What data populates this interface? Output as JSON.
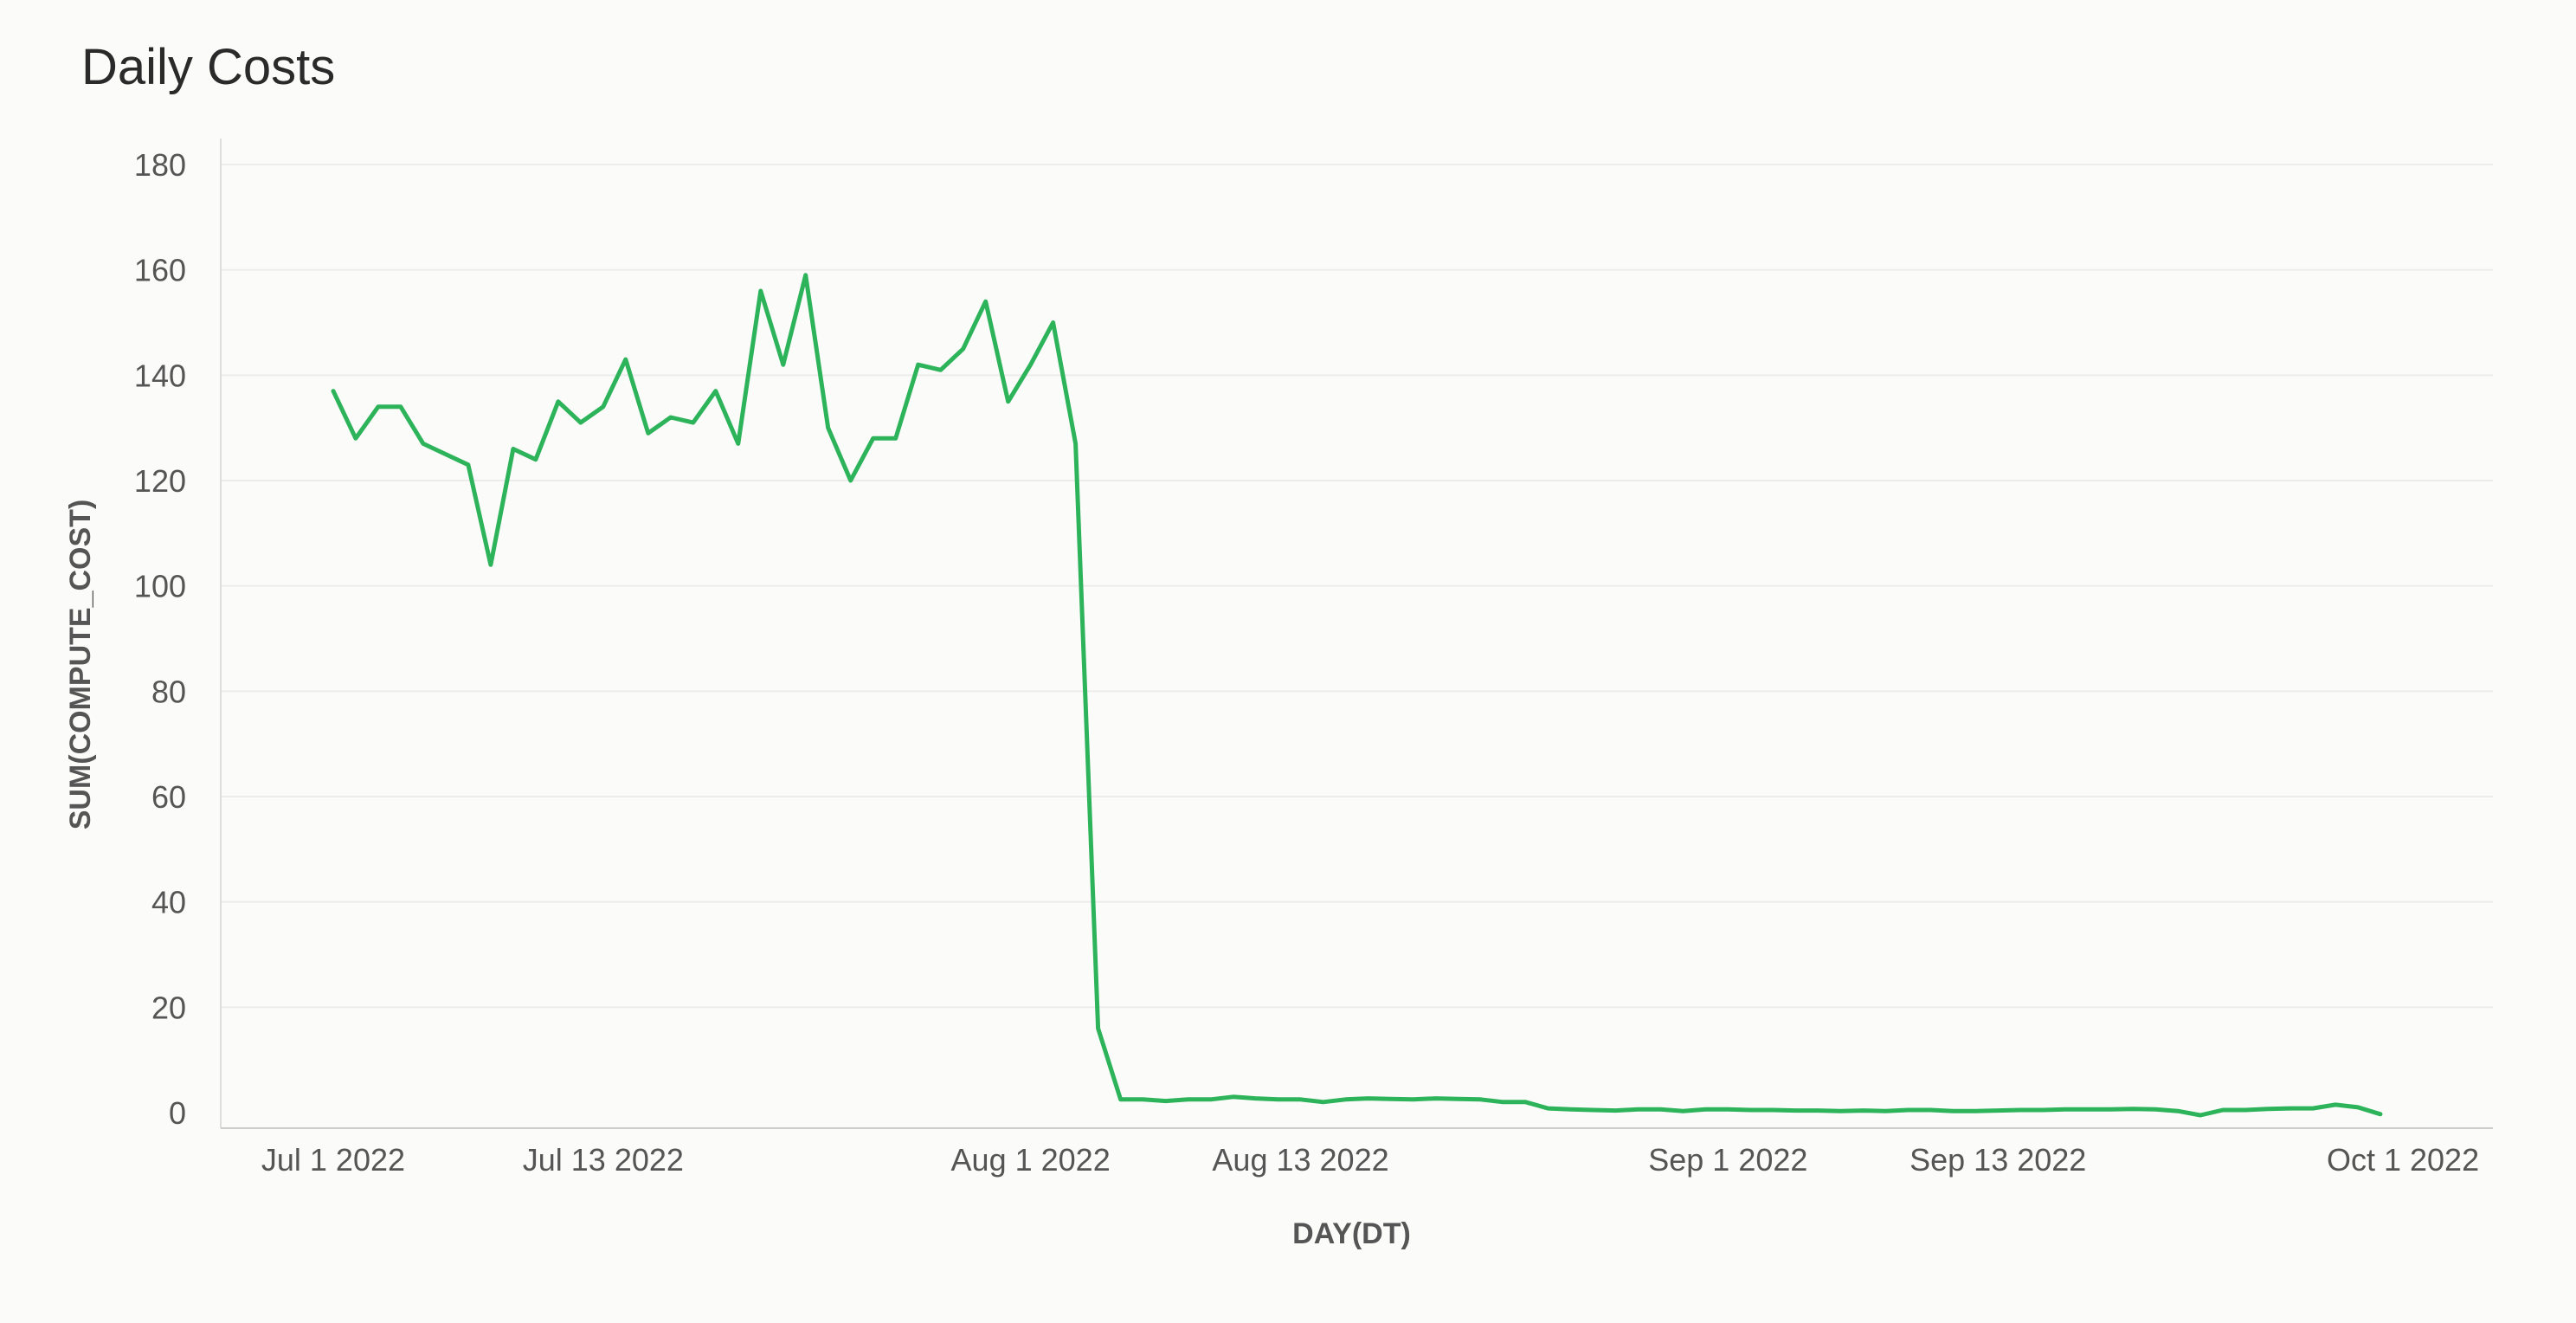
{
  "chart_data": {
    "type": "line",
    "title": "Daily Costs",
    "xlabel": "DAY(DT)",
    "ylabel": "SUM(COMPUTE_COST)",
    "ylim": [
      0,
      180
    ],
    "xlim": [
      "2022-06-26",
      "2022-10-05"
    ],
    "yticks": [
      0,
      20,
      40,
      60,
      80,
      100,
      120,
      140,
      160,
      180
    ],
    "xticks": [
      {
        "date": "2022-07-01",
        "label": "Jul 1 2022"
      },
      {
        "date": "2022-07-13",
        "label": "Jul 13 2022"
      },
      {
        "date": "2022-08-01",
        "label": "Aug 1 2022"
      },
      {
        "date": "2022-08-13",
        "label": "Aug 13 2022"
      },
      {
        "date": "2022-09-01",
        "label": "Sep 1 2022"
      },
      {
        "date": "2022-09-13",
        "label": "Sep 13 2022"
      },
      {
        "date": "2022-10-01",
        "label": "Oct 1 2022"
      }
    ],
    "grid": true,
    "color": "#2db35a",
    "series": [
      {
        "x": [
          "2022-07-01",
          "2022-07-02",
          "2022-07-03",
          "2022-07-04",
          "2022-07-05",
          "2022-07-06",
          "2022-07-07",
          "2022-07-08",
          "2022-07-09",
          "2022-07-10",
          "2022-07-11",
          "2022-07-12",
          "2022-07-13",
          "2022-07-14",
          "2022-07-15",
          "2022-07-16",
          "2022-07-17",
          "2022-07-18",
          "2022-07-19",
          "2022-07-20",
          "2022-07-21",
          "2022-07-22",
          "2022-07-23",
          "2022-07-24",
          "2022-07-25",
          "2022-07-26",
          "2022-07-27",
          "2022-07-28",
          "2022-07-29",
          "2022-07-30",
          "2022-07-31",
          "2022-08-01",
          "2022-08-02",
          "2022-08-03",
          "2022-08-04",
          "2022-08-05",
          "2022-08-06",
          "2022-08-07",
          "2022-08-08",
          "2022-08-09",
          "2022-08-10",
          "2022-08-11",
          "2022-08-12",
          "2022-08-13",
          "2022-08-14",
          "2022-08-15",
          "2022-08-16",
          "2022-08-17",
          "2022-08-18",
          "2022-08-19",
          "2022-08-20",
          "2022-08-21",
          "2022-08-22",
          "2022-08-23",
          "2022-08-24",
          "2022-08-25",
          "2022-08-26",
          "2022-08-27",
          "2022-08-28",
          "2022-08-29",
          "2022-08-30",
          "2022-08-31",
          "2022-09-01",
          "2022-09-02",
          "2022-09-03",
          "2022-09-04",
          "2022-09-05",
          "2022-09-06",
          "2022-09-07",
          "2022-09-08",
          "2022-09-09",
          "2022-09-10",
          "2022-09-11",
          "2022-09-12",
          "2022-09-13",
          "2022-09-14",
          "2022-09-15",
          "2022-09-16",
          "2022-09-17",
          "2022-09-18",
          "2022-09-19",
          "2022-09-20",
          "2022-09-21",
          "2022-09-22",
          "2022-09-23",
          "2022-09-24",
          "2022-09-25",
          "2022-09-26",
          "2022-09-27",
          "2022-09-28",
          "2022-09-29",
          "2022-09-30"
        ],
        "values": [
          137,
          128,
          134,
          134,
          127,
          125,
          123,
          104,
          126,
          124,
          135,
          131,
          134,
          143,
          129,
          132,
          131,
          137,
          127,
          156,
          142,
          159,
          130,
          120,
          128,
          128,
          142,
          141,
          145,
          154,
          135,
          142,
          150,
          127,
          16,
          2.5,
          2.5,
          2.2,
          2.5,
          2.5,
          3,
          2.7,
          2.5,
          2.5,
          2,
          2.5,
          2.7,
          2.6,
          2.5,
          2.7,
          2.6,
          2.5,
          2,
          2,
          0.8,
          0.6,
          0.5,
          0.4,
          0.6,
          0.6,
          0.3,
          0.6,
          0.6,
          0.5,
          0.5,
          0.4,
          0.4,
          0.3,
          0.4,
          0.3,
          0.5,
          0.5,
          0.3,
          0.3,
          0.4,
          0.5,
          0.5,
          0.6,
          0.6,
          0.6,
          0.7,
          0.6,
          0.3,
          -0.5,
          0.5,
          0.5,
          0.7,
          0.8,
          0.8,
          1.5,
          1,
          -0.3
        ]
      }
    ]
  }
}
